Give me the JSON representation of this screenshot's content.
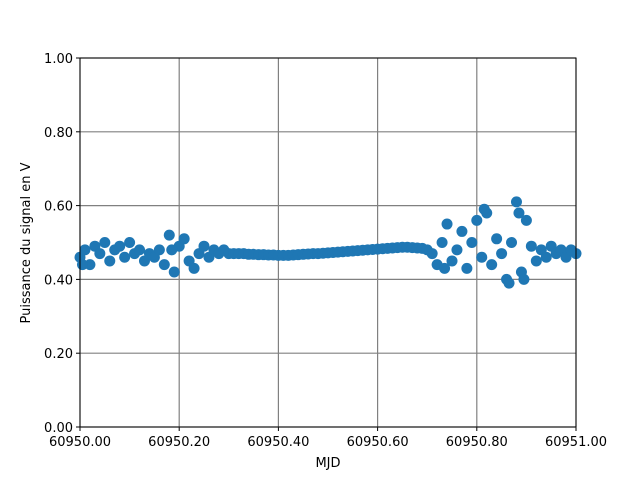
{
  "chart_data": {
    "type": "scatter",
    "xlabel": "MJD",
    "ylabel": "Puissance du signal en V",
    "color": "#1f77b4",
    "grid": true,
    "xlim": [
      60950.0,
      60951.0
    ],
    "xticks": [
      {
        "value": 60950.0,
        "label": "60950.00"
      },
      {
        "value": 60950.2,
        "label": "60950.20"
      },
      {
        "value": 60950.4,
        "label": "60950.40"
      },
      {
        "value": 60950.6,
        "label": "60950.60"
      },
      {
        "value": 60950.8,
        "label": "60950.80"
      },
      {
        "value": 60951.0,
        "label": "60951.00"
      }
    ],
    "ylim": [
      0,
      1
    ],
    "yticks": [
      {
        "value": 0,
        "label": "0.00"
      },
      {
        "value": 0.2,
        "label": "0.20"
      },
      {
        "value": 0.4,
        "label": "0.40"
      },
      {
        "value": 0.6,
        "label": "0.60"
      },
      {
        "value": 0.8,
        "label": "0.80"
      },
      {
        "value": 1,
        "label": "1.00"
      }
    ],
    "x": [
      60950.0,
      60950.01,
      60950.02,
      60950.03,
      60950.04,
      60950.05,
      60950.06,
      60950.07,
      60950.08,
      60950.09,
      60950.1,
      60950.11,
      60950.12,
      60950.13,
      60950.14,
      60950.15,
      60950.16,
      60950.17,
      60950.18,
      60950.19,
      60950.2,
      60950.21,
      60950.22,
      60950.23,
      60950.24,
      60950.25,
      60950.26,
      60950.27,
      60950.28,
      60950.29,
      60950.3,
      60950.31,
      60950.32,
      60950.33,
      60950.34,
      60950.35,
      60950.36,
      60950.37,
      60950.38,
      60950.39,
      60950.4,
      60950.41,
      60950.42,
      60950.43,
      60950.44,
      60950.45,
      60950.46,
      60950.47,
      60950.48,
      60950.49,
      60950.5,
      60950.51,
      60950.52,
      60950.53,
      60950.54,
      60950.55,
      60950.56,
      60950.57,
      60950.58,
      60950.59,
      60950.6,
      60950.61,
      60950.62,
      60950.63,
      60950.64,
      60950.65,
      60950.66,
      60950.67,
      60950.68,
      60950.69,
      60950.7,
      60950.71,
      60950.72,
      60950.73,
      60950.74,
      60950.75,
      60950.76,
      60950.77,
      60950.78,
      60950.79,
      60950.8,
      60950.81,
      60950.82,
      60950.83,
      60950.84,
      60950.85,
      60950.86,
      60950.87,
      60950.88,
      60950.89,
      60950.9,
      60950.91,
      60950.92,
      60950.93,
      60950.94,
      60950.95,
      60950.96,
      60950.97,
      60950.98,
      60950.99,
      60951.0,
      60950.005,
      60950.185,
      60950.815,
      60950.885,
      60950.895,
      60950.865,
      60950.735
    ],
    "values": [
      0.46,
      0.48,
      0.44,
      0.49,
      0.47,
      0.5,
      0.45,
      0.48,
      0.49,
      0.46,
      0.5,
      0.47,
      0.48,
      0.45,
      0.47,
      0.46,
      0.48,
      0.44,
      0.52,
      0.42,
      0.49,
      0.51,
      0.45,
      0.43,
      0.47,
      0.49,
      0.46,
      0.48,
      0.47,
      0.48,
      0.47,
      0.47,
      0.47,
      0.47,
      0.468,
      0.468,
      0.467,
      0.467,
      0.466,
      0.466,
      0.465,
      0.465,
      0.465,
      0.466,
      0.467,
      0.468,
      0.469,
      0.47,
      0.47,
      0.471,
      0.472,
      0.473,
      0.474,
      0.475,
      0.476,
      0.477,
      0.478,
      0.479,
      0.48,
      0.481,
      0.482,
      0.483,
      0.484,
      0.485,
      0.486,
      0.487,
      0.487,
      0.486,
      0.485,
      0.484,
      0.48,
      0.47,
      0.44,
      0.5,
      0.55,
      0.45,
      0.48,
      0.53,
      0.43,
      0.5,
      0.56,
      0.46,
      0.58,
      0.44,
      0.51,
      0.47,
      0.4,
      0.5,
      0.61,
      0.42,
      0.56,
      0.49,
      0.45,
      0.48,
      0.46,
      0.49,
      0.47,
      0.48,
      0.46,
      0.48,
      0.47,
      0.44,
      0.48,
      0.59,
      0.58,
      0.4,
      0.39,
      0.43
    ]
  }
}
